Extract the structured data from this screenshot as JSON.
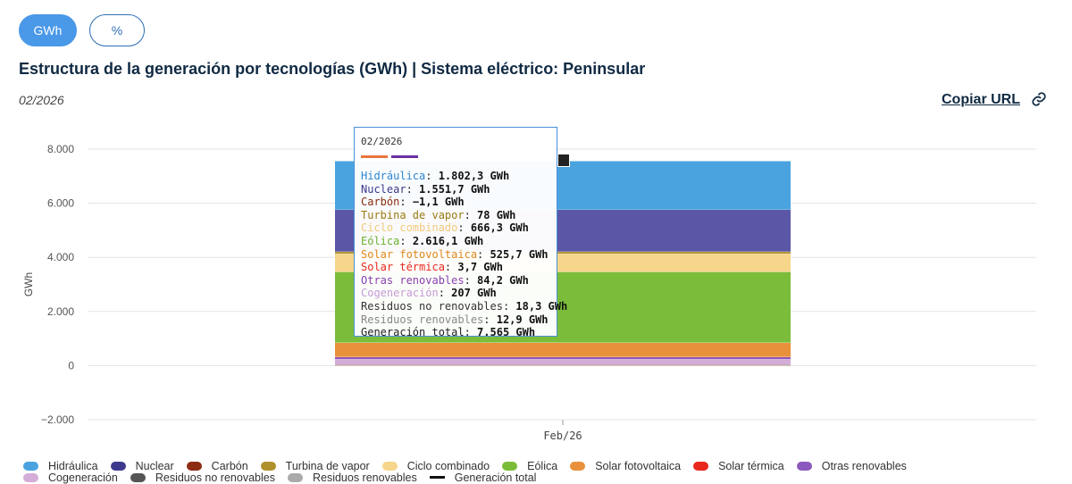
{
  "toggles": {
    "gwh": "GWh",
    "percent": "%"
  },
  "title": "Estructura de la generación por tecnologías (GWh) | Sistema eléctrico: Peninsular",
  "date": "02/2026",
  "copy_url": "Copiar URL",
  "tooltip": {
    "date": "02/2026",
    "swatch_colors": [
      "#e8763a",
      "#6a2fa0"
    ],
    "rows": [
      {
        "label": "Hidráulica",
        "value": "1.802,3 GWh",
        "color": "#2f86d0"
      },
      {
        "label": "Nuclear",
        "value": "1.551,7 GWh",
        "color": "#3b3a8c"
      },
      {
        "label": "Carbón",
        "value": "−1,1 GWh",
        "color": "#8c2c12"
      },
      {
        "label": "Turbina de vapor",
        "value": "78 GWh",
        "color": "#9b7b12"
      },
      {
        "label": "Ciclo combinado",
        "value": "666,3 GWh",
        "color": "#f1c97a"
      },
      {
        "label": "Eólica",
        "value": "2.616,1 GWh",
        "color": "#6bb12e"
      },
      {
        "label": "Solar fotovoltaica",
        "value": "525,7 GWh",
        "color": "#e0861a"
      },
      {
        "label": "Solar térmica",
        "value": "3,7 GWh",
        "color": "#e8271d"
      },
      {
        "label": "Otras renovables",
        "value": "84,2 GWh",
        "color": "#8b3fb0"
      },
      {
        "label": "Cogeneración",
        "value": "207 GWh",
        "color": "#c79ad8"
      },
      {
        "label": "Residuos no renovables",
        "value": "18,3 GWh",
        "color": "#333333"
      },
      {
        "label": "Residuos renovables",
        "value": "12,9 GWh",
        "color": "#888888"
      },
      {
        "label": "Generación total",
        "value": "7.565 GWh",
        "color": "#222222"
      }
    ]
  },
  "legend": [
    [
      {
        "label": "Hidráulica",
        "color": "#4aa3df",
        "kind": "pill"
      },
      {
        "label": "Nuclear",
        "color": "#3d3a8e",
        "kind": "pill"
      },
      {
        "label": "Carbón",
        "color": "#8c2c12",
        "kind": "pill"
      },
      {
        "label": "Turbina de vapor",
        "color": "#b0902a",
        "kind": "pill"
      },
      {
        "label": "Ciclo combinado",
        "color": "#f6d68b",
        "kind": "pill"
      },
      {
        "label": "Eólica",
        "color": "#7bbd3a",
        "kind": "pill"
      },
      {
        "label": "Solar fotovoltaica",
        "color": "#e8913a",
        "kind": "pill"
      },
      {
        "label": "Solar térmica",
        "color": "#e8271d",
        "kind": "pill"
      },
      {
        "label": "Otras renovables",
        "color": "#8b59bd",
        "kind": "pill"
      }
    ],
    [
      {
        "label": "Cogeneración",
        "color": "#d4acd8",
        "kind": "pill"
      },
      {
        "label": "Residuos no renovables",
        "color": "#555555",
        "kind": "pill"
      },
      {
        "label": "Residuos renovables",
        "color": "#aaaaaa",
        "kind": "pill"
      },
      {
        "label": "Generación total",
        "color": "#111111",
        "kind": "line"
      }
    ]
  ],
  "chart_data": {
    "type": "bar",
    "stacked": true,
    "categories": [
      "Feb/26"
    ],
    "ylabel": "GWh",
    "xlabel": "",
    "ylim": [
      -2000,
      8000
    ],
    "yticks": [
      -2000,
      0,
      2000,
      4000,
      6000,
      8000
    ],
    "ytick_labels": [
      "−2.000",
      "0",
      "2.000",
      "4.000",
      "6.000",
      "8.000"
    ],
    "series": [
      {
        "name": "Residuos renovables",
        "values": [
          12.9
        ],
        "color": "#aaaaaa"
      },
      {
        "name": "Residuos no renovables",
        "values": [
          18.3
        ],
        "color": "#555555"
      },
      {
        "name": "Cogeneración",
        "values": [
          207
        ],
        "color": "#d4acd8"
      },
      {
        "name": "Otras renovables",
        "values": [
          84.2
        ],
        "color": "#8b59bd"
      },
      {
        "name": "Solar térmica",
        "values": [
          3.7
        ],
        "color": "#e8271d"
      },
      {
        "name": "Solar fotovoltaica",
        "values": [
          525.7
        ],
        "color": "#e8913a"
      },
      {
        "name": "Eólica",
        "values": [
          2616.1
        ],
        "color": "#7bbd3a"
      },
      {
        "name": "Ciclo combinado",
        "values": [
          666.3
        ],
        "color": "#f6d68b"
      },
      {
        "name": "Turbina de vapor",
        "values": [
          78
        ],
        "color": "#b0902a"
      },
      {
        "name": "Carbón",
        "values": [
          -1.1
        ],
        "color": "#8c2c12"
      },
      {
        "name": "Nuclear",
        "values": [
          1551.7
        ],
        "color": "#5b57a6"
      },
      {
        "name": "Hidráulica",
        "values": [
          1802.3
        ],
        "color": "#4aa3df"
      }
    ],
    "total": {
      "name": "Generación total",
      "values": [
        7565
      ]
    }
  }
}
